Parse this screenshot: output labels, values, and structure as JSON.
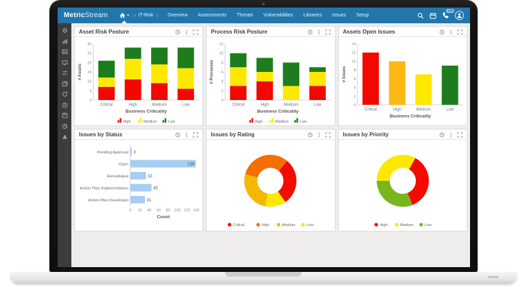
{
  "navbar": {
    "logo_bold": "Metric",
    "logo_light": "Stream",
    "section": "IT-Risk",
    "separator": "›",
    "items": [
      "Overview",
      "Assessments",
      "Threats",
      "Vulnerabilities",
      "Libraries",
      "Issues",
      "Setup"
    ],
    "phone_badge": "139",
    "right_icons": [
      "search-icon",
      "calendar-icon",
      "phone-icon",
      "user-avatar-icon"
    ],
    "bg_color": "#2177ac"
  },
  "sidebar": {
    "icons": [
      {
        "name": "dashboard-icon",
        "shape": "gear"
      },
      {
        "name": "chart-icon",
        "shape": "chart"
      },
      {
        "name": "image-icon",
        "shape": "image"
      },
      {
        "name": "monitor-icon",
        "shape": "monitor"
      },
      {
        "name": "settings-icon",
        "shape": "sliders"
      },
      {
        "name": "layers-icon",
        "shape": "layers"
      },
      {
        "name": "sync-icon",
        "shape": "refresh"
      },
      {
        "name": "history-icon",
        "shape": "clock"
      },
      {
        "name": "archive-icon",
        "shape": "box"
      },
      {
        "name": "reports-icon",
        "shape": "pie"
      },
      {
        "name": "upload-icon",
        "shape": "triangle"
      }
    ]
  },
  "card_actions": [
    "history-icon",
    "kebab-menu-icon",
    "expand-icon"
  ],
  "chart_data": [
    {
      "type": "stacked_bar",
      "title": "Asset Risk Posture",
      "ylabel": "# Assets",
      "xlabel": "Business Criticality",
      "ylim": [
        0,
        30
      ],
      "ystep": 5,
      "grid": false,
      "legend_position": "bottom",
      "categories": [
        "Critical",
        "High",
        "Medium",
        "Low"
      ],
      "series": [
        {
          "name": "High",
          "color": "#f20800",
          "values": [
            7,
            11,
            9,
            6
          ]
        },
        {
          "name": "Medium",
          "color": "#ffe800",
          "values": [
            5,
            11,
            10,
            11
          ]
        },
        {
          "name": "Low",
          "color": "#1d7d1d",
          "values": [
            9,
            6,
            9,
            11
          ]
        }
      ]
    },
    {
      "type": "stacked_bar",
      "title": "Process Risk Posture",
      "ylabel": "# Processes",
      "xlabel": "Business Criticality",
      "ylim": [
        0,
        12
      ],
      "ystep": 2,
      "grid": false,
      "legend_position": "bottom",
      "categories": [
        "Critical",
        "High",
        "Medium",
        "Low"
      ],
      "series": [
        {
          "name": "High",
          "color": "#f20800",
          "values": [
            3,
            4,
            0,
            3
          ]
        },
        {
          "name": "Medium",
          "color": "#ffe800",
          "values": [
            4,
            2,
            3,
            3
          ]
        },
        {
          "name": "Low",
          "color": "#1d7d1d",
          "values": [
            3,
            3,
            5,
            1
          ]
        }
      ]
    },
    {
      "type": "bar",
      "title": "Assets Open Issues",
      "ylabel": "# Issues",
      "xlabel": "Business Criticality",
      "ylim": [
        0,
        14
      ],
      "ystep": 2,
      "grid": false,
      "legend_position": "none",
      "categories": [
        "Critical",
        "High",
        "Medium",
        "Low"
      ],
      "values": [
        12,
        10,
        7,
        9
      ],
      "colors": [
        "#f20800",
        "#fcb913",
        "#ffe800",
        "#1d7d1d"
      ]
    },
    {
      "type": "hbar",
      "title": "Issues by Status",
      "xlabel": "Count",
      "xlim": [
        0,
        140
      ],
      "xstep": 20,
      "grid": false,
      "legend_position": "none",
      "categories": [
        "Pending Approval",
        "Open",
        "Remediated",
        "Action Plan Implementation",
        "Action Plan Developed"
      ],
      "values": [
        3,
        139,
        33,
        45,
        31
      ],
      "bar_color": "#a7cdf2",
      "value_labels": true
    },
    {
      "type": "donut",
      "title": "Issues by Rating",
      "start_angle_deg": 285,
      "legend_position": "bottom",
      "slices": [
        {
          "label": "High",
          "pct": 32,
          "color": "#f56f00"
        },
        {
          "label": "Critical",
          "pct": 29,
          "color": "#f30b00"
        },
        {
          "label": "Low",
          "pct": 13,
          "color": "#ffe800"
        },
        {
          "label": "Medium",
          "pct": 26,
          "color": "#f5b800"
        }
      ],
      "legend": [
        {
          "label": "Critical",
          "color": "#f30b00"
        },
        {
          "label": "High",
          "color": "#f56f00"
        },
        {
          "label": "Medium",
          "color": "#f5b800"
        },
        {
          "label": "Low",
          "color": "#ffe800"
        }
      ]
    },
    {
      "type": "donut",
      "title": "Issues by Priority",
      "start_angle_deg": 270,
      "legend_position": "bottom",
      "slices": [
        {
          "label": "Medium",
          "pct": 33,
          "color": "#ffe800"
        },
        {
          "label": "High",
          "pct": 36,
          "color": "#f30b00"
        },
        {
          "label": "Low",
          "pct": 31,
          "color": "#79b51c"
        }
      ],
      "legend": [
        {
          "label": "High",
          "color": "#f30b00"
        },
        {
          "label": "Medium",
          "color": "#ffe800"
        },
        {
          "label": "Low",
          "color": "#79b51c"
        }
      ]
    }
  ]
}
